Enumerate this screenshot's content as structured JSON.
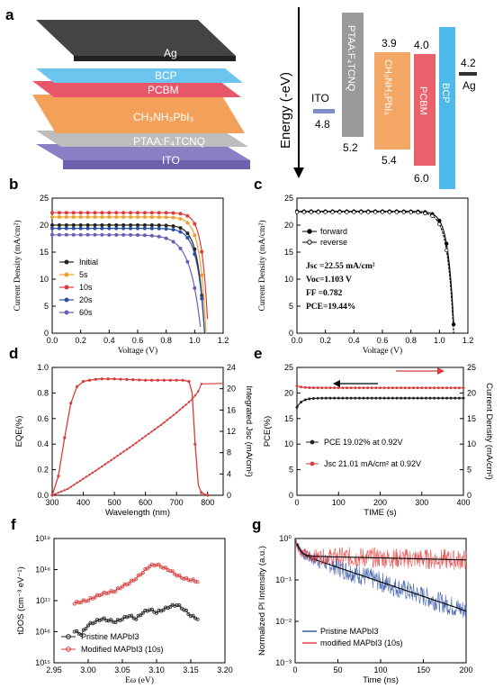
{
  "panel_a": {
    "label": "a",
    "layers": [
      "Ag",
      "BCP",
      "PCBM",
      "CH₃NH₃PbI₃",
      "PTAA:F₄TCNQ",
      "ITO"
    ],
    "energy_axis_label": "Energy (-eV)",
    "levels": [
      {
        "name": "ITO",
        "value": "4.8",
        "color": "#7e8ec9"
      },
      {
        "name": "PTAA:F₄TCNQ",
        "top": "",
        "bottom": "5.2",
        "color": "#9a9a9a"
      },
      {
        "name": "CH₃NH₃PbI₃",
        "top": "3.9",
        "bottom": "5.4",
        "color": "#f4a765"
      },
      {
        "name": "PCBM",
        "top": "4.0",
        "bottom": "6.0",
        "color": "#e8616b"
      },
      {
        "name": "BCP",
        "top": "",
        "bottom": "",
        "color": "#4db8ea"
      },
      {
        "name": "Ag",
        "value": "4.2",
        "color": "#333333"
      }
    ]
  },
  "panels": {
    "b": {
      "label": "b",
      "xlabel": "Voltage (V)",
      "ylabel": "Current Density (mA/cm²)",
      "xticks": [
        "0.0",
        "0.2",
        "0.4",
        "0.6",
        "0.8",
        "1.0",
        "1.2"
      ],
      "yticks": [
        "0",
        "5",
        "10",
        "15",
        "20",
        "25"
      ]
    },
    "c": {
      "label": "c",
      "xlabel": "Voltage (V)",
      "ylabel": "Current Density (mA/cm²)",
      "xticks": [
        "0.0",
        "0.2",
        "0.4",
        "0.6",
        "0.8",
        "1.0",
        "1.2"
      ],
      "yticks": [
        "0",
        "5",
        "10",
        "15",
        "20",
        "25"
      ],
      "legend": [
        "forward",
        "reverse"
      ],
      "metrics": [
        "Jsc =22.55 mA/cm²",
        "Voc=1.103 V",
        "FF =0.782",
        "PCE=19.44%"
      ]
    },
    "d": {
      "label": "d",
      "xlabel": "Wavelength (nm)",
      "ylabel": "EQE(%)",
      "y2label": "Integrated Jsc (mA/cm²)",
      "xticks": [
        "300",
        "400",
        "500",
        "600",
        "700",
        "800"
      ],
      "yticks": [
        "0.0",
        "0.2",
        "0.4",
        "0.6",
        "0.8",
        "1.0"
      ],
      "y2ticks": [
        "0",
        "4",
        "8",
        "12",
        "16",
        "20",
        "24"
      ]
    },
    "e": {
      "label": "e",
      "xlabel": "TIME (s)",
      "ylabel": "PCE(%)",
      "y2label": "Current Density (mA/cm²)",
      "xticks": [
        "0",
        "100",
        "200",
        "300",
        "400"
      ],
      "yticks": [
        "0",
        "5",
        "10",
        "15",
        "20",
        "25"
      ],
      "y2ticks": [
        "0",
        "5",
        "10",
        "15",
        "20",
        "25"
      ],
      "legend": [
        "PCE 19.02% at 0.92V",
        "Jsc 21.01 mA/cm² at 0.92V"
      ]
    },
    "f": {
      "label": "f",
      "xlabel": "Eω (eV)",
      "ylabel": "tDOS (cm⁻³ eV⁻¹)",
      "xticks": [
        "2.95",
        "3.00",
        "3.05",
        "3.10",
        "3.15",
        "3.20"
      ],
      "yticks": [
        "10¹⁵",
        "10¹⁶",
        "10¹⁷",
        "10¹⁸",
        "10¹⁹"
      ],
      "legend": [
        "Pristine MAPbI3",
        "Modified MAPbI3 (10s)"
      ]
    },
    "g": {
      "label": "g",
      "xlabel": "Time (ns)",
      "ylabel": "Normalized Pl Intensity (a.u.)",
      "xticks": [
        "0",
        "50",
        "100",
        "150",
        "200"
      ],
      "yticks": [
        "10⁻³",
        "10⁻²",
        "10⁻¹",
        "10⁰"
      ],
      "legend": [
        "Pristine MAPbI3",
        "modified MAPbI3 (10s)"
      ]
    }
  },
  "chart_data": [
    {
      "panel": "b",
      "type": "line",
      "xlabel": "Voltage (V)",
      "ylabel": "Current Density (mA/cm²)",
      "xlim": [
        0,
        1.2
      ],
      "ylim": [
        0,
        25
      ],
      "series": [
        {
          "name": "Initial",
          "color": "#222222",
          "jsc": 20.0,
          "voc": 1.07,
          "knee": 0.14
        },
        {
          "name": "5s",
          "color": "#f0a030",
          "jsc": 21.5,
          "voc": 1.08,
          "knee": 0.13
        },
        {
          "name": "10s",
          "color": "#e03c3c",
          "jsc": 22.3,
          "voc": 1.095,
          "knee": 0.12
        },
        {
          "name": "20s",
          "color": "#2a4fa8",
          "jsc": 19.4,
          "voc": 1.07,
          "knee": 0.15
        },
        {
          "name": "60s",
          "color": "#6a5fb8",
          "jsc": 18.2,
          "voc": 1.045,
          "knee": 0.22
        }
      ]
    },
    {
      "panel": "c",
      "type": "line",
      "xlabel": "Voltage (V)",
      "ylabel": "Current Density (mA/cm²)",
      "xlim": [
        0,
        1.2
      ],
      "ylim": [
        0,
        25
      ],
      "series": [
        {
          "name": "forward",
          "color": "#000000",
          "jsc": 22.55,
          "voc": 1.103,
          "knee": 0.12
        },
        {
          "name": "reverse",
          "color": "#000000",
          "jsc": 22.4,
          "voc": 1.1,
          "knee": 0.13
        }
      ]
    },
    {
      "panel": "d",
      "type": "line",
      "xlabel": "Wavelength (nm)",
      "ylabel": "EQE(%)",
      "xlim": [
        300,
        850
      ],
      "ylim": [
        0,
        1.0
      ],
      "y2lim": [
        0,
        24
      ],
      "eqe": {
        "x": [
          300,
          320,
          340,
          360,
          380,
          400,
          420,
          450,
          500,
          550,
          600,
          650,
          700,
          720,
          740,
          750,
          760,
          770,
          780,
          790,
          800
        ],
        "y": [
          0.0,
          0.15,
          0.45,
          0.72,
          0.85,
          0.89,
          0.9,
          0.91,
          0.91,
          0.905,
          0.9,
          0.9,
          0.9,
          0.9,
          0.89,
          0.8,
          0.4,
          0.08,
          0.02,
          0.01,
          0.0
        ]
      },
      "integrated_jsc": {
        "x": [
          300,
          350,
          400,
          450,
          500,
          550,
          600,
          650,
          700,
          750,
          770,
          780,
          850
        ],
        "y": [
          0.0,
          1.2,
          3.1,
          5.0,
          7.0,
          9.0,
          11.1,
          13.2,
          15.5,
          18.0,
          19.5,
          20.9,
          21.0
        ]
      }
    },
    {
      "panel": "e",
      "type": "line",
      "xlabel": "TIME (s)",
      "ylabel": "PCE(%)",
      "xlim": [
        0,
        400
      ],
      "ylim": [
        0,
        25
      ],
      "series": [
        {
          "name": "PCE 19.02% at 0.92V",
          "color": "#222222",
          "start": 17.2,
          "steady": 19.0
        },
        {
          "name": "Jsc 21.01 mA/cm² at 0.92V",
          "color": "#d83c3c",
          "start": 21.4,
          "steady": 21.0
        }
      ]
    },
    {
      "panel": "f",
      "type": "line",
      "xlabel": "Eω (eV)",
      "ylabel": "tDOS (cm⁻³ eV⁻¹)",
      "xlim": [
        2.95,
        3.2
      ],
      "ylim_log10": [
        15,
        19
      ],
      "series": [
        {
          "name": "Pristine MAPbI3",
          "color": "#222222",
          "x": [
            2.98,
            2.99,
            3.0,
            3.01,
            3.02,
            3.03,
            3.04,
            3.05,
            3.06,
            3.07,
            3.08,
            3.09,
            3.1,
            3.11,
            3.12,
            3.13,
            3.14,
            3.15,
            3.16
          ],
          "log_y": [
            16.0,
            15.9,
            16.2,
            16.3,
            16.4,
            16.35,
            16.3,
            16.4,
            16.5,
            16.4,
            16.6,
            16.7,
            16.6,
            16.7,
            16.8,
            16.85,
            16.7,
            16.5,
            16.4
          ]
        },
        {
          "name": "Modified MAPbI3 (10s)",
          "color": "#d83c3c",
          "x": [
            2.98,
            2.99,
            3.0,
            3.01,
            3.02,
            3.03,
            3.04,
            3.05,
            3.06,
            3.07,
            3.08,
            3.09,
            3.1,
            3.11,
            3.12,
            3.13,
            3.14,
            3.15,
            3.16
          ],
          "log_y": [
            16.9,
            16.95,
            17.0,
            17.1,
            17.2,
            17.25,
            17.3,
            17.45,
            17.55,
            17.7,
            17.9,
            18.1,
            18.15,
            18.05,
            17.95,
            17.8,
            17.7,
            17.65,
            17.6
          ]
        }
      ]
    },
    {
      "panel": "g",
      "type": "line",
      "xlabel": "Time (ns)",
      "ylabel": "Normalized Pl Intensity (a.u.)",
      "xlim": [
        0,
        200
      ],
      "ylim_log10": [
        -3,
        0
      ],
      "series": [
        {
          "name": "Pristine MAPbI3",
          "color": "#2a4fa8",
          "a1": 0.55,
          "t1": 4,
          "a2": 0.45,
          "t2": 62
        },
        {
          "name": "modified MAPbI3 (10s)",
          "color": "#e03c3c",
          "a1": 0.62,
          "t1": 4,
          "a2": 0.38,
          "t2": 900
        }
      ]
    }
  ]
}
